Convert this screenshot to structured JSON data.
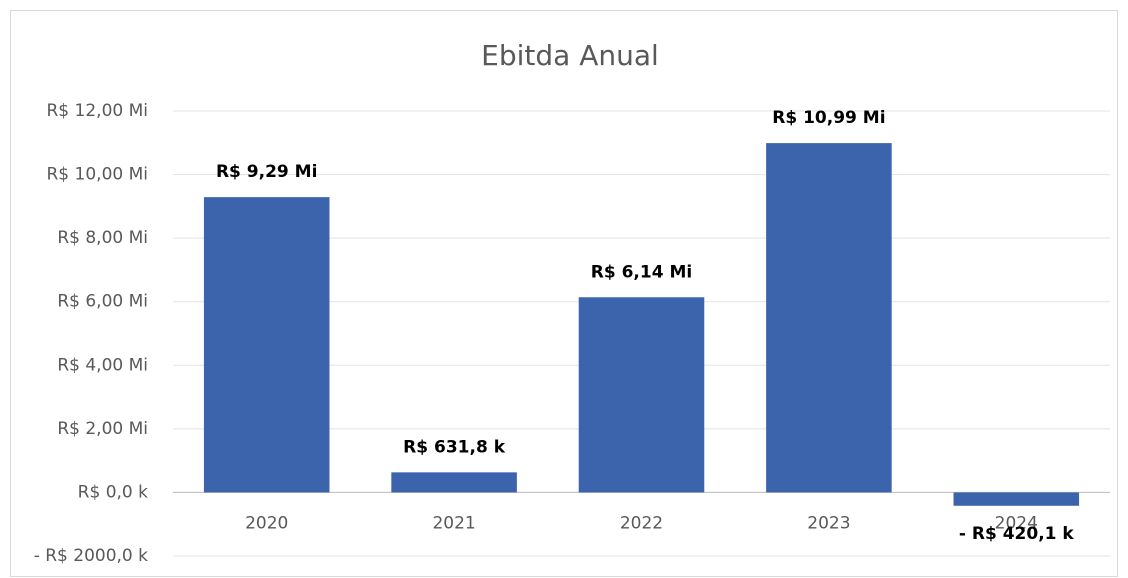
{
  "chart_data": {
    "type": "bar",
    "title": "Ebitda Anual",
    "categories": [
      "2020",
      "2021",
      "2022",
      "2023",
      "2024"
    ],
    "values": [
      9290000,
      631800,
      6140000,
      10990000,
      -420100
    ],
    "value_labels": [
      "R$ 9,29 Mi",
      "R$ 631,8 k",
      "R$ 6,14 Mi",
      "R$ 10,99 Mi",
      "- R$ 420,1 k"
    ],
    "color": "#3c64ad",
    "ylim": [
      -2000000,
      12000000
    ],
    "yticks": [
      {
        "value": -2000000,
        "label": "- R$ 2000,0 k"
      },
      {
        "value": 0,
        "label": "R$ 0,0 k"
      },
      {
        "value": 2000000,
        "label": "R$ 2,00 Mi"
      },
      {
        "value": 4000000,
        "label": "R$ 4,00 Mi"
      },
      {
        "value": 6000000,
        "label": "R$ 6,00 Mi"
      },
      {
        "value": 8000000,
        "label": "R$ 8,00 Mi"
      },
      {
        "value": 10000000,
        "label": "R$ 10,00 Mi"
      },
      {
        "value": 12000000,
        "label": "R$ 12,00 Mi"
      }
    ],
    "grid": true
  }
}
